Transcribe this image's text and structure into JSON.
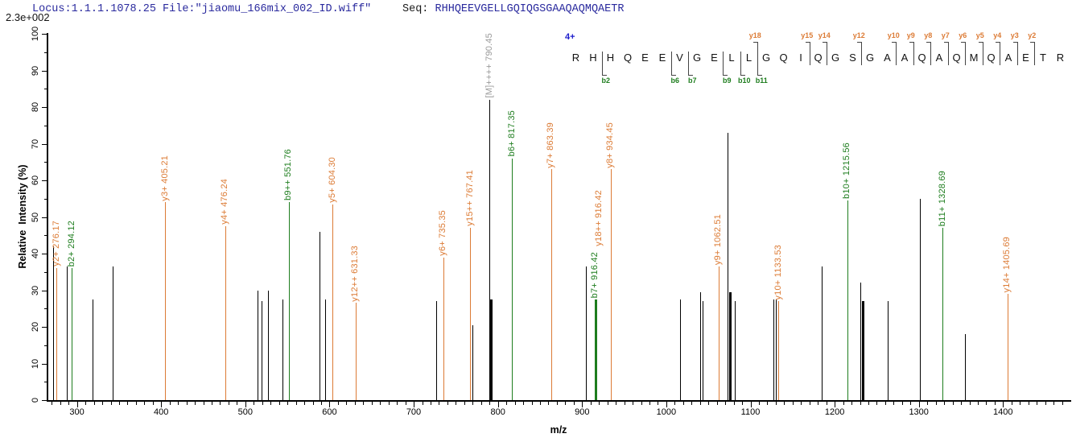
{
  "header": {
    "locus_file": "Locus:1.1.1.1078.25 File:\"jiaomu_166mix_002_ID.wiff\"",
    "seq_prefix": "Seq: ",
    "sequence": "RHHQEEVGELLGQIQGSGAAQAQMQAETR",
    "intensity_scale": "2.3e+002"
  },
  "colors": {
    "y_ion": "#dc7b35",
    "b_ion": "#1e7d1e",
    "precursor_label": "#9a9a9a",
    "unassigned_peak": "#000000",
    "header_text": "#2a2a9e"
  },
  "annotation": {
    "charge_label": "4+",
    "sequence": "RHHQEEVGELLGQIQGSGAAQAQMQAETR",
    "b_ions": [
      {
        "label": "b2",
        "after": 2
      },
      {
        "label": "b6",
        "after": 6
      },
      {
        "label": "b7",
        "after": 7
      },
      {
        "label": "b9",
        "after": 9
      },
      {
        "label": "b10",
        "after": 10
      },
      {
        "label": "b11",
        "after": 11
      }
    ],
    "y_ions": [
      {
        "label": "y18",
        "after": 11
      },
      {
        "label": "y15",
        "after": 14
      },
      {
        "label": "y14",
        "after": 15
      },
      {
        "label": "y12",
        "after": 17
      },
      {
        "label": "y10",
        "after": 19
      },
      {
        "label": "y9",
        "after": 20
      },
      {
        "label": "y8",
        "after": 21
      },
      {
        "label": "y7",
        "after": 22
      },
      {
        "label": "y6",
        "after": 23
      },
      {
        "label": "y5",
        "after": 24
      },
      {
        "label": "y4",
        "after": 25
      },
      {
        "label": "y3",
        "after": 26
      },
      {
        "label": "y2",
        "after": 27
      }
    ]
  },
  "chart_data": {
    "type": "bar",
    "subtype": "ms2-mass-spectrum",
    "title": "",
    "xlabel": "m/z",
    "ylabel": "Relative  Intensity (%)",
    "x_range": [
      265,
      1480
    ],
    "y_range": [
      0,
      100
    ],
    "x_major_ticks": [
      300,
      400,
      500,
      600,
      700,
      800,
      900,
      1000,
      1100,
      1200,
      1300,
      1400
    ],
    "x_minor_step": 10,
    "y_major_ticks": [
      0,
      10,
      20,
      30,
      40,
      50,
      60,
      70,
      80,
      90,
      100
    ],
    "y_minor_step": 5,
    "grid": false,
    "peaks": [
      {
        "mz": 272.0,
        "pct": 42,
        "ion": "x"
      },
      {
        "mz": 276.17,
        "pct": 36,
        "ion": "y",
        "lbl": "y2+ 276.17"
      },
      {
        "mz": 288.0,
        "pct": 36.5,
        "ion": "x"
      },
      {
        "mz": 294.12,
        "pct": 36,
        "ion": "b",
        "lbl": "b2+ 294.12"
      },
      {
        "mz": 319.0,
        "pct": 27.5,
        "ion": "x"
      },
      {
        "mz": 343.0,
        "pct": 36.5,
        "ion": "x"
      },
      {
        "mz": 405.21,
        "pct": 54,
        "ion": "y",
        "lbl": "y3+ 405.21"
      },
      {
        "mz": 476.24,
        "pct": 47.5,
        "ion": "y",
        "lbl": "y4+ 476.24"
      },
      {
        "mz": 515.0,
        "pct": 30,
        "ion": "x"
      },
      {
        "mz": 520.0,
        "pct": 27,
        "ion": "x"
      },
      {
        "mz": 527.0,
        "pct": 30,
        "ion": "x"
      },
      {
        "mz": 545.0,
        "pct": 27.5,
        "ion": "x"
      },
      {
        "mz": 551.76,
        "pct": 54,
        "ion": "b",
        "lbl": "b9++ 551.76"
      },
      {
        "mz": 589.0,
        "pct": 46,
        "ion": "x"
      },
      {
        "mz": 595.0,
        "pct": 27.5,
        "ion": "x"
      },
      {
        "mz": 604.3,
        "pct": 53.5,
        "ion": "y",
        "lbl": "y5+ 604.30"
      },
      {
        "mz": 631.33,
        "pct": 26.5,
        "ion": "y",
        "lbl": "y12++ 631.33"
      },
      {
        "mz": 727.0,
        "pct": 27,
        "ion": "x"
      },
      {
        "mz": 735.35,
        "pct": 39,
        "ion": "y",
        "lbl": "y6+ 735.35"
      },
      {
        "mz": 767.41,
        "pct": 47,
        "ion": "y",
        "lbl": "y15++ 767.41"
      },
      {
        "mz": 770.5,
        "pct": 20.5,
        "ion": "x"
      },
      {
        "mz": 790.45,
        "pct": 82,
        "ion": "pre",
        "lbl": "[M]++++ 790.45"
      },
      {
        "mz": 791.8,
        "pct": 27.5,
        "ion": "x",
        "bold": true
      },
      {
        "mz": 817.35,
        "pct": 66,
        "ion": "b",
        "lbl": "b6+ 817.35"
      },
      {
        "mz": 863.39,
        "pct": 63,
        "ion": "y",
        "lbl": "y7+ 863.39"
      },
      {
        "mz": 905.0,
        "pct": 36.5,
        "ion": "x"
      },
      {
        "mz": 916.42,
        "pct": 27.5,
        "ion": "b",
        "bold": true,
        "lbl": "b7+ 916.42",
        "lbl2": "y18++ 916.42",
        "lbl2_ion": "y"
      },
      {
        "mz": 934.45,
        "pct": 63,
        "ion": "y",
        "lbl": "y8+ 934.45"
      },
      {
        "mz": 1017.0,
        "pct": 27.5,
        "ion": "x"
      },
      {
        "mz": 1041.0,
        "pct": 29.5,
        "ion": "x"
      },
      {
        "mz": 1044.0,
        "pct": 27,
        "ion": "x"
      },
      {
        "mz": 1062.51,
        "pct": 36.5,
        "ion": "y",
        "lbl": "y9+ 1062.51"
      },
      {
        "mz": 1073.0,
        "pct": 73,
        "ion": "x"
      },
      {
        "mz": 1076.0,
        "pct": 29.5,
        "ion": "x",
        "bold": true
      },
      {
        "mz": 1082.0,
        "pct": 27,
        "ion": "x"
      },
      {
        "mz": 1128.0,
        "pct": 27.5,
        "ion": "x"
      },
      {
        "mz": 1131.0,
        "pct": 27.5,
        "ion": "x"
      },
      {
        "mz": 1133.53,
        "pct": 27,
        "ion": "y",
        "lbl": "y10+ 1133.53"
      },
      {
        "mz": 1185.0,
        "pct": 36.5,
        "ion": "x"
      },
      {
        "mz": 1215.56,
        "pct": 54.5,
        "ion": "b",
        "lbl": "b10+ 1215.56"
      },
      {
        "mz": 1230.5,
        "pct": 32,
        "ion": "x"
      },
      {
        "mz": 1233.5,
        "pct": 27,
        "ion": "x",
        "bold": true
      },
      {
        "mz": 1263.0,
        "pct": 27,
        "ion": "x"
      },
      {
        "mz": 1301.5,
        "pct": 55,
        "ion": "x"
      },
      {
        "mz": 1328.69,
        "pct": 47,
        "ion": "b",
        "lbl": "b11+ 1328.69"
      },
      {
        "mz": 1355.0,
        "pct": 18,
        "ion": "x"
      },
      {
        "mz": 1405.69,
        "pct": 29,
        "ion": "y",
        "lbl": "y14+ 1405.69"
      }
    ]
  }
}
